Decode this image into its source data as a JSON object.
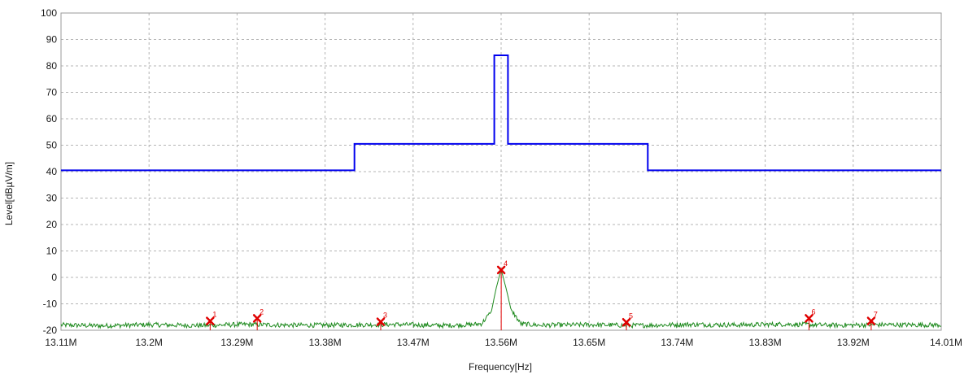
{
  "chart_data": {
    "type": "line",
    "xlabel": "Frequency[Hz]",
    "ylabel": "Level[dBµV/m]",
    "xlim": [
      13.11,
      14.01
    ],
    "ylim": [
      -20,
      100
    ],
    "grid": true,
    "x_ticks": [
      13.11,
      13.2,
      13.29,
      13.38,
      13.47,
      13.56,
      13.65,
      13.74,
      13.83,
      13.92,
      14.01
    ],
    "x_tick_labels": [
      "13.11M",
      "13.2M",
      "13.29M",
      "13.38M",
      "13.47M",
      "13.56M",
      "13.65M",
      "13.74M",
      "13.83M",
      "13.92M",
      "14.01M"
    ],
    "y_ticks": [
      -20,
      -10,
      0,
      10,
      20,
      30,
      40,
      50,
      60,
      70,
      80,
      90,
      100
    ],
    "y_tick_labels": [
      "-20",
      "-10",
      "0",
      "10",
      "20",
      "30",
      "40",
      "50",
      "60",
      "70",
      "80",
      "90",
      "100"
    ],
    "colors": {
      "limit": "#0000ee",
      "trace": "#1e8a1e",
      "marker": "#e00000",
      "grid": "#b4b4b4"
    },
    "series": [
      {
        "role": "limit-line",
        "x": [
          13.11,
          13.41,
          13.41,
          13.553,
          13.553,
          13.567,
          13.567,
          13.71,
          13.71,
          14.01
        ],
        "y": [
          40.5,
          40.5,
          50.5,
          50.5,
          84,
          84,
          50.5,
          50.5,
          40.5,
          40.5
        ]
      },
      {
        "role": "measurement-trace",
        "x": [
          13.11,
          13.15,
          13.2,
          13.25,
          13.3,
          13.35,
          13.4,
          13.45,
          13.5,
          13.53,
          13.54,
          13.55,
          13.555,
          13.56,
          13.565,
          13.57,
          13.58,
          13.6,
          13.65,
          13.7,
          13.75,
          13.8,
          13.85,
          13.9,
          13.95,
          14.01
        ],
        "y": [
          -18,
          -18.3,
          -17.9,
          -18.2,
          -17.8,
          -18.1,
          -18,
          -17.8,
          -18.2,
          -17.9,
          -17.5,
          -13,
          -4,
          3,
          -4,
          -12,
          -17.6,
          -18.1,
          -17.9,
          -18.2,
          -17.8,
          -18,
          -17.7,
          -18.1,
          -17.9,
          -18
        ]
      }
    ],
    "markers": [
      {
        "label": "1",
        "x": 13.2625,
        "y": -16.5
      },
      {
        "label": "2",
        "x": 13.3106,
        "y": -15.5
      },
      {
        "label": "3",
        "x": 13.4369,
        "y": -16.8
      },
      {
        "label": "4",
        "x": 13.5601,
        "y": 2.8
      },
      {
        "label": "5",
        "x": 13.6881,
        "y": -17
      },
      {
        "label": "6",
        "x": 13.8748,
        "y": -15.5
      },
      {
        "label": "7",
        "x": 13.9384,
        "y": -16.5
      }
    ]
  }
}
